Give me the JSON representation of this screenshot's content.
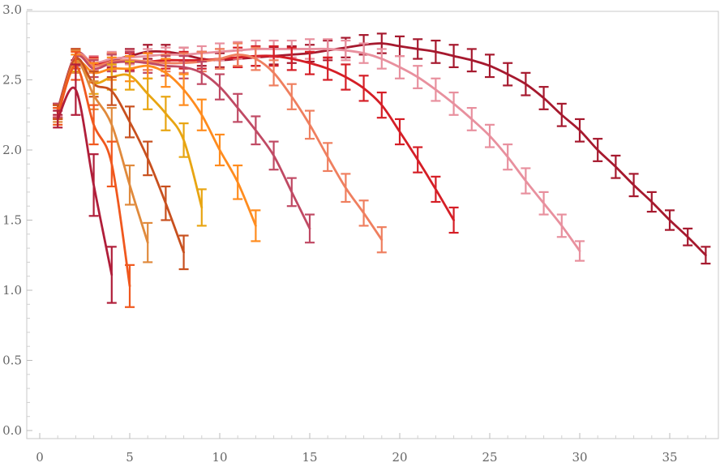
{
  "chart_data": {
    "type": "line",
    "error_bars": true,
    "smooth": true,
    "title": "",
    "xlabel": "",
    "ylabel": "",
    "xlim": [
      0,
      37.5
    ],
    "ylim": [
      0,
      3.0
    ],
    "xticks": [
      "0",
      "5",
      "10",
      "15",
      "20",
      "25",
      "30",
      "35"
    ],
    "yticks": [
      "0.0",
      "0.5",
      "1.0",
      "1.5",
      "2.0",
      "2.5",
      "3.0"
    ],
    "grid": false,
    "legend": "none",
    "series": [
      {
        "color": "#b01e3a",
        "x": [
          1,
          2,
          3,
          4
        ],
        "y": [
          2.22,
          2.43,
          1.75,
          1.11
        ],
        "err": [
          0.06,
          0.18,
          0.22,
          0.2
        ]
      },
      {
        "color": "#f0581e",
        "x": [
          1,
          2,
          3,
          4,
          5
        ],
        "y": [
          2.24,
          2.6,
          2.18,
          1.9,
          1.03
        ],
        "err": [
          0.06,
          0.1,
          0.14,
          0.16,
          0.15
        ]
      },
      {
        "color": "#e08a3c",
        "x": [
          1,
          2,
          3,
          4,
          5,
          6
        ],
        "y": [
          2.25,
          2.63,
          2.39,
          2.18,
          1.75,
          1.34
        ],
        "err": [
          0.05,
          0.08,
          0.1,
          0.12,
          0.14,
          0.14
        ]
      },
      {
        "color": "#c8501e",
        "x": [
          1,
          2,
          3,
          4,
          5,
          6,
          7,
          8
        ],
        "y": [
          2.27,
          2.65,
          2.47,
          2.42,
          2.2,
          1.94,
          1.62,
          1.27
        ],
        "err": [
          0.05,
          0.07,
          0.09,
          0.1,
          0.11,
          0.12,
          0.12,
          0.12
        ]
      },
      {
        "color": "#e8a512",
        "x": [
          1,
          2,
          3,
          4,
          5,
          6,
          7,
          8,
          9
        ],
        "y": [
          2.27,
          2.63,
          2.48,
          2.52,
          2.53,
          2.4,
          2.26,
          2.07,
          1.59
        ],
        "err": [
          0.05,
          0.07,
          0.08,
          0.09,
          0.1,
          0.11,
          0.12,
          0.12,
          0.13
        ]
      },
      {
        "color": "#ff8c1e",
        "x": [
          1,
          2,
          3,
          4,
          5,
          6,
          7,
          8,
          9,
          10,
          11,
          12
        ],
        "y": [
          2.27,
          2.62,
          2.55,
          2.58,
          2.58,
          2.6,
          2.55,
          2.43,
          2.25,
          2.0,
          1.77,
          1.46
        ],
        "err": [
          0.05,
          0.06,
          0.07,
          0.08,
          0.09,
          0.09,
          0.1,
          0.11,
          0.11,
          0.11,
          0.12,
          0.11
        ]
      },
      {
        "color": "#c04a64",
        "x": [
          1,
          2,
          3,
          4,
          5,
          6,
          7,
          8,
          9,
          10,
          11,
          12,
          13,
          14,
          15
        ],
        "y": [
          2.28,
          2.66,
          2.58,
          2.62,
          2.63,
          2.62,
          2.6,
          2.59,
          2.55,
          2.45,
          2.3,
          2.14,
          1.96,
          1.7,
          1.44
        ],
        "err": [
          0.05,
          0.06,
          0.06,
          0.06,
          0.07,
          0.07,
          0.07,
          0.08,
          0.08,
          0.09,
          0.1,
          0.1,
          0.1,
          0.1,
          0.1
        ]
      },
      {
        "color": "#ef7f5f",
        "x": [
          1,
          2,
          3,
          4,
          5,
          6,
          7,
          8,
          9,
          10,
          11,
          12,
          13,
          14,
          15,
          16,
          17,
          18,
          19
        ],
        "y": [
          2.28,
          2.67,
          2.6,
          2.63,
          2.64,
          2.63,
          2.62,
          2.62,
          2.63,
          2.65,
          2.68,
          2.65,
          2.55,
          2.38,
          2.18,
          1.95,
          1.73,
          1.55,
          1.36
        ],
        "err": [
          0.05,
          0.05,
          0.05,
          0.06,
          0.06,
          0.06,
          0.06,
          0.07,
          0.07,
          0.07,
          0.08,
          0.08,
          0.09,
          0.09,
          0.1,
          0.1,
          0.1,
          0.09,
          0.09
        ]
      },
      {
        "color": "#d51e26",
        "x": [
          1,
          2,
          3,
          4,
          5,
          6,
          7,
          8,
          9,
          10,
          11,
          12,
          13,
          14,
          15,
          16,
          17,
          18,
          19,
          20,
          21,
          22,
          23
        ],
        "y": [
          2.28,
          2.66,
          2.61,
          2.63,
          2.63,
          2.63,
          2.64,
          2.64,
          2.64,
          2.65,
          2.66,
          2.67,
          2.67,
          2.65,
          2.62,
          2.58,
          2.52,
          2.44,
          2.32,
          2.13,
          1.93,
          1.72,
          1.5
        ],
        "err": [
          0.05,
          0.05,
          0.05,
          0.05,
          0.06,
          0.06,
          0.06,
          0.06,
          0.06,
          0.07,
          0.07,
          0.07,
          0.07,
          0.08,
          0.08,
          0.08,
          0.09,
          0.09,
          0.09,
          0.09,
          0.09,
          0.09,
          0.09
        ]
      },
      {
        "color": "#e8909e",
        "x": [
          1,
          2,
          3,
          4,
          5,
          6,
          7,
          8,
          9,
          10,
          11,
          12,
          13,
          14,
          15,
          16,
          17,
          18,
          19,
          20,
          21,
          22,
          23,
          24,
          25,
          26,
          27,
          28,
          29,
          30
        ],
        "y": [
          2.28,
          2.67,
          2.62,
          2.65,
          2.66,
          2.67,
          2.68,
          2.68,
          2.69,
          2.7,
          2.71,
          2.72,
          2.72,
          2.72,
          2.72,
          2.72,
          2.71,
          2.69,
          2.65,
          2.59,
          2.52,
          2.43,
          2.33,
          2.22,
          2.1,
          1.95,
          1.78,
          1.62,
          1.46,
          1.28
        ],
        "err": [
          0.04,
          0.04,
          0.05,
          0.05,
          0.05,
          0.05,
          0.05,
          0.05,
          0.05,
          0.06,
          0.06,
          0.06,
          0.06,
          0.06,
          0.07,
          0.07,
          0.07,
          0.07,
          0.07,
          0.08,
          0.08,
          0.08,
          0.08,
          0.08,
          0.08,
          0.09,
          0.09,
          0.08,
          0.08,
          0.07
        ]
      },
      {
        "color": "#a6192e",
        "x": [
          1,
          2,
          3,
          4,
          5,
          6,
          7,
          8,
          9,
          10,
          11,
          12,
          13,
          14,
          15,
          16,
          17,
          18,
          19,
          20,
          21,
          22,
          23,
          24,
          25,
          26,
          27,
          28,
          29,
          30,
          31,
          32,
          33,
          34,
          35,
          36,
          37
        ],
        "y": [
          2.29,
          2.68,
          2.61,
          2.64,
          2.67,
          2.7,
          2.7,
          2.68,
          2.65,
          2.64,
          2.65,
          2.66,
          2.67,
          2.68,
          2.69,
          2.71,
          2.73,
          2.75,
          2.76,
          2.74,
          2.72,
          2.7,
          2.67,
          2.64,
          2.6,
          2.54,
          2.47,
          2.37,
          2.25,
          2.14,
          2.0,
          1.88,
          1.75,
          1.63,
          1.5,
          1.38,
          1.25
        ],
        "err": [
          0.04,
          0.04,
          0.04,
          0.05,
          0.05,
          0.05,
          0.05,
          0.05,
          0.05,
          0.05,
          0.06,
          0.06,
          0.06,
          0.06,
          0.06,
          0.07,
          0.07,
          0.07,
          0.07,
          0.07,
          0.07,
          0.08,
          0.08,
          0.08,
          0.08,
          0.08,
          0.08,
          0.08,
          0.08,
          0.08,
          0.08,
          0.08,
          0.08,
          0.07,
          0.07,
          0.06,
          0.06
        ]
      }
    ]
  }
}
